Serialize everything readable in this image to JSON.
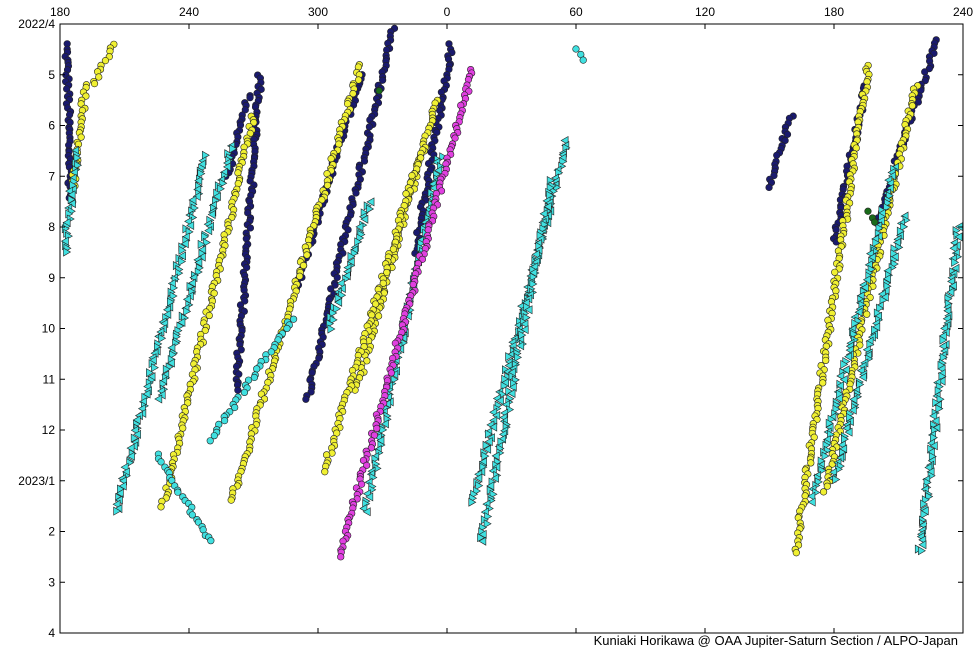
{
  "chart_data": {
    "type": "scatter",
    "title": "",
    "xlabel": "",
    "ylabel": "",
    "x_axis": {
      "description": "System II longitude (degrees), wrapping at 360 -> 0; axis spans from 180 through 360/0 and 180 again to 240",
      "ticks": [
        {
          "value": 180,
          "label": "180"
        },
        {
          "value": 240,
          "label": "240"
        },
        {
          "value": 300,
          "label": "300"
        },
        {
          "value": 360,
          "label": "0"
        },
        {
          "value": 420,
          "label": "60"
        },
        {
          "value": 480,
          "label": "120"
        },
        {
          "value": 540,
          "label": "180"
        },
        {
          "value": 600,
          "label": "240"
        }
      ],
      "range": [
        180,
        600
      ]
    },
    "y_axis": {
      "description": "Date, months from 2022/4 (top) to 2023/4 (bottom)",
      "ticks": [
        {
          "value": 0,
          "label": "2022/4"
        },
        {
          "value": 1,
          "label": "5"
        },
        {
          "value": 2,
          "label": "6"
        },
        {
          "value": 3,
          "label": "7"
        },
        {
          "value": 4,
          "label": "8"
        },
        {
          "value": 5,
          "label": "9"
        },
        {
          "value": 6,
          "label": "10"
        },
        {
          "value": 7,
          "label": "11"
        },
        {
          "value": 8,
          "label": "12"
        },
        {
          "value": 9,
          "label": "2023/1"
        },
        {
          "value": 10,
          "label": "2"
        },
        {
          "value": 11,
          "label": "3"
        },
        {
          "value": 12,
          "label": "4"
        }
      ],
      "range": [
        0,
        12
      ],
      "inverted": true
    },
    "grid": false,
    "series": [
      {
        "color": "#1a1a6e",
        "marker": "circle",
        "tracks": [
          [
            183,
            0.4,
            185,
            3.5
          ],
          [
            273,
            1.0,
            262,
            7.2
          ],
          [
            335,
            0.1,
            295,
            7.4
          ],
          [
            320,
            1.0,
            290,
            5.2
          ],
          [
            362,
            0.4,
            345,
            4.5
          ],
          [
            268,
            1.4,
            258,
            3.0
          ],
          [
            555,
            1.2,
            540,
            4.3
          ],
          [
            588,
            0.3,
            560,
            3.9
          ],
          [
            520,
            1.8,
            510,
            3.2
          ]
        ]
      },
      {
        "color": "#f0f032",
        "marker": "circle",
        "tracks": [
          [
            192,
            1.2,
            186,
            3.2
          ],
          [
            270,
            1.8,
            228,
            9.5
          ],
          [
            320,
            0.8,
            260,
            9.4
          ],
          [
            355,
            1.5,
            318,
            7.2
          ],
          [
            348,
            2.5,
            303,
            8.8
          ],
          [
            578,
            1.2,
            536,
            9.2
          ],
          [
            556,
            0.8,
            522,
            10.4
          ],
          [
            205,
            0.4,
            195,
            1.2
          ]
        ]
      },
      {
        "color": "#40e0e0",
        "marker": "triangle",
        "tracks": [
          [
            248,
            2.6,
            206,
            9.6
          ],
          [
            260,
            2.4,
            226,
            7.4
          ],
          [
            416,
            2.3,
            372,
            9.4
          ],
          [
            409,
            3.1,
            376,
            10.2
          ],
          [
            568,
            2.8,
            530,
            9.4
          ],
          [
            573,
            3.8,
            540,
            9.0
          ],
          [
            357,
            2.6,
            322,
            9.6
          ],
          [
            598,
            4.0,
            580,
            10.4
          ],
          [
            188,
            2.5,
            182,
            4.5
          ],
          [
            324,
            3.5,
            305,
            6.0
          ]
        ]
      },
      {
        "color": "#e040e0",
        "marker": "circle",
        "tracks": [
          [
            372,
            0.9,
            310,
            10.5
          ]
        ]
      },
      {
        "color": "#40e0e0",
        "marker": "circle",
        "tracks": [
          [
            225,
            8.5,
            250,
            10.2
          ],
          [
            420,
            0.5,
            424,
            0.7
          ],
          [
            288,
            5.8,
            250,
            8.2
          ]
        ]
      },
      {
        "color": "#1a6a1a",
        "marker": "circle",
        "tracks": [
          [
            328,
            1.3,
            328,
            1.3
          ],
          [
            556,
            3.7,
            560,
            3.9
          ]
        ]
      }
    ],
    "credit": "Kuniaki Horikawa @ OAA Jupiter-Saturn Section / ALPO-Japan"
  }
}
